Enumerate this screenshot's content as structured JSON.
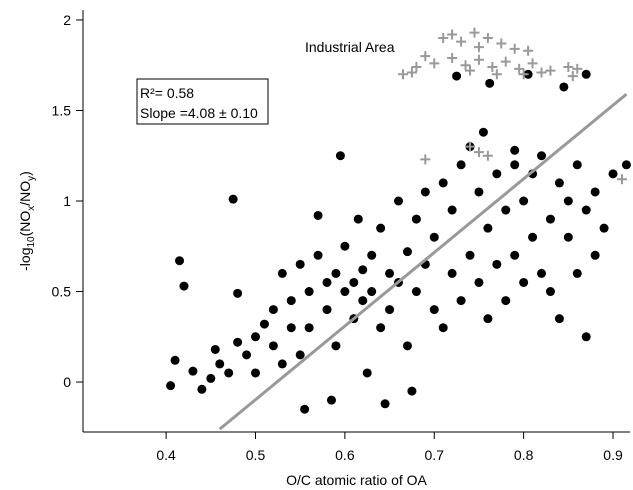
{
  "chart_data": {
    "type": "scatter",
    "x_label": "O/C atomic ratio of OA",
    "y_label_parts": [
      "-log",
      "10",
      "(NO",
      "x",
      "/NO",
      "y",
      ")"
    ],
    "annotations": [
      "Industrial Area",
      "R²= 0.58",
      "Slope =4.08 ± 0.10"
    ],
    "xlim": [
      0.307,
      0.919
    ],
    "ylim": [
      -0.276,
      2.055
    ],
    "xticks": [
      0.4,
      0.5,
      0.6,
      0.7,
      0.8,
      0.9
    ],
    "yticks": [
      0.0,
      0.5,
      1.0,
      1.5,
      2.0
    ],
    "fit_line": {
      "color": "#999999",
      "x": [
        0.46,
        0.915
      ],
      "y": [
        -0.26,
        1.59
      ]
    },
    "series": [
      {
        "color": "#000000",
        "marker": "circle",
        "x": [
          0.405,
          0.41,
          0.415,
          0.42,
          0.43,
          0.44,
          0.45,
          0.455,
          0.46,
          0.47,
          0.475,
          0.48,
          0.48,
          0.49,
          0.5,
          0.5,
          0.51,
          0.52,
          0.52,
          0.53,
          0.53,
          0.54,
          0.54,
          0.55,
          0.55,
          0.555,
          0.56,
          0.56,
          0.57,
          0.57,
          0.58,
          0.58,
          0.585,
          0.59,
          0.59,
          0.595,
          0.6,
          0.6,
          0.61,
          0.61,
          0.615,
          0.62,
          0.62,
          0.625,
          0.63,
          0.63,
          0.64,
          0.64,
          0.645,
          0.65,
          0.65,
          0.66,
          0.66,
          0.67,
          0.67,
          0.675,
          0.68,
          0.68,
          0.69,
          0.69,
          0.7,
          0.7,
          0.71,
          0.71,
          0.72,
          0.72,
          0.73,
          0.73,
          0.74,
          0.74,
          0.75,
          0.75,
          0.755,
          0.76,
          0.76,
          0.77,
          0.77,
          0.78,
          0.78,
          0.79,
          0.79,
          0.8,
          0.8,
          0.81,
          0.81,
          0.82,
          0.82,
          0.83,
          0.83,
          0.84,
          0.84,
          0.85,
          0.85,
          0.86,
          0.86,
          0.87,
          0.87,
          0.88,
          0.88,
          0.89,
          0.9,
          0.915,
          0.725,
          0.762,
          0.805,
          0.845,
          0.87,
          0.79
        ],
        "values": [
          -0.02,
          0.12,
          0.67,
          0.53,
          0.06,
          -0.04,
          0.02,
          0.18,
          0.1,
          0.05,
          1.01,
          0.22,
          0.49,
          0.15,
          0.25,
          0.05,
          0.32,
          0.2,
          0.4,
          0.1,
          0.6,
          0.3,
          0.45,
          0.15,
          0.65,
          -0.15,
          0.5,
          0.3,
          0.7,
          0.92,
          0.4,
          0.55,
          -0.1,
          0.6,
          0.2,
          1.25,
          0.5,
          0.75,
          0.35,
          0.55,
          0.9,
          0.45,
          0.62,
          0.05,
          0.7,
          0.5,
          0.3,
          0.85,
          -0.12,
          0.6,
          0.4,
          1.0,
          0.55,
          0.72,
          0.2,
          -0.05,
          0.5,
          0.9,
          0.65,
          1.05,
          0.4,
          0.8,
          0.3,
          1.1,
          0.6,
          0.95,
          0.45,
          1.2,
          0.7,
          1.3,
          0.55,
          1.05,
          1.38,
          0.85,
          0.35,
          1.15,
          0.65,
          0.95,
          0.45,
          1.2,
          0.7,
          1.0,
          0.55,
          1.15,
          0.8,
          0.6,
          1.25,
          0.9,
          0.5,
          1.1,
          0.35,
          0.8,
          1.0,
          1.2,
          0.6,
          0.95,
          0.25,
          1.05,
          0.7,
          0.85,
          1.15,
          1.2,
          1.69,
          1.65,
          1.7,
          1.63,
          1.7,
          1.28
        ]
      },
      {
        "color": "#999999",
        "marker": "plus",
        "x": [
          0.71,
          0.72,
          0.73,
          0.745,
          0.75,
          0.76,
          0.775,
          0.79,
          0.805,
          0.72,
          0.735,
          0.75,
          0.765,
          0.78,
          0.795,
          0.81,
          0.7,
          0.69,
          0.68,
          0.675,
          0.665,
          0.83,
          0.85,
          0.86,
          0.855,
          0.74,
          0.77,
          0.8,
          0.82,
          0.74,
          0.75,
          0.76,
          0.69,
          0.91
        ],
        "values": [
          1.9,
          1.92,
          1.88,
          1.93,
          1.85,
          1.9,
          1.87,
          1.84,
          1.83,
          1.79,
          1.75,
          1.78,
          1.74,
          1.77,
          1.73,
          1.76,
          1.76,
          1.8,
          1.74,
          1.71,
          1.7,
          1.72,
          1.74,
          1.73,
          1.69,
          1.72,
          1.7,
          1.7,
          1.71,
          1.3,
          1.27,
          1.25,
          1.23,
          1.12
        ]
      }
    ]
  }
}
